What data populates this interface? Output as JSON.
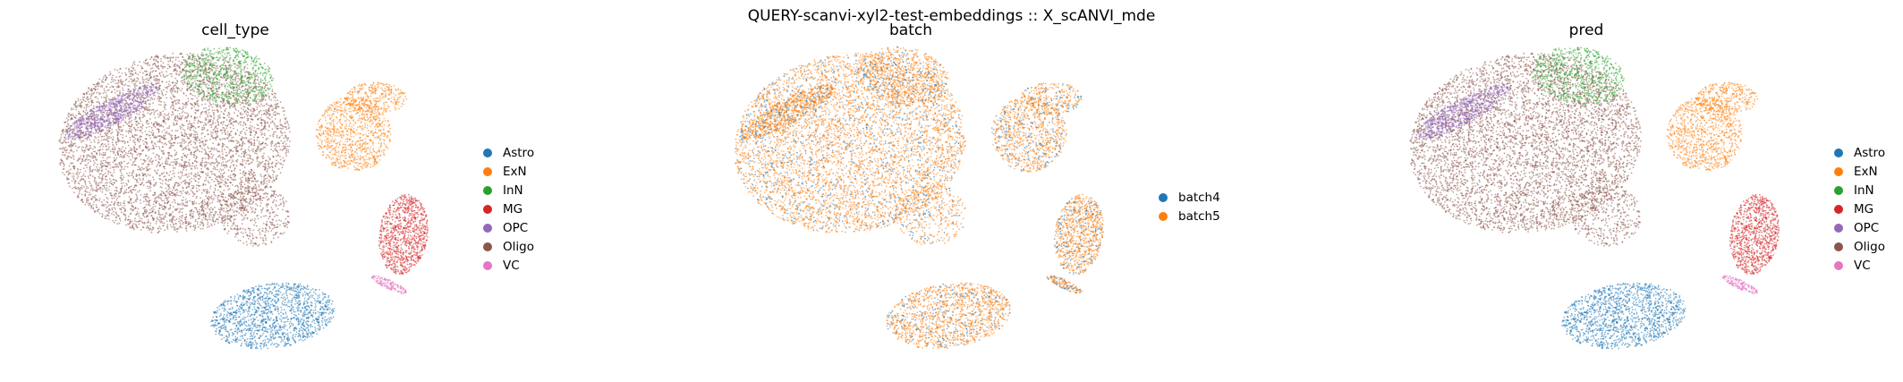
{
  "suptitle": "QUERY-scanvi-xyl2-test-embeddings :: X_scANVI_mde",
  "chart_data": [
    {
      "type": "scatter",
      "title": "cell_type",
      "legend": "right",
      "grid": false,
      "categories": [
        {
          "name": "Astro",
          "color": "#1f77b4"
        },
        {
          "name": "ExN",
          "color": "#ff7f0e"
        },
        {
          "name": "InN",
          "color": "#2ca02c"
        },
        {
          "name": "MG",
          "color": "#d62728"
        },
        {
          "name": "OPC",
          "color": "#9467bd"
        },
        {
          "name": "Oligo",
          "color": "#8c564b"
        },
        {
          "name": "VC",
          "color": "#e377c2"
        }
      ]
    },
    {
      "type": "scatter",
      "title": "batch",
      "legend": "right",
      "grid": false,
      "categories": [
        {
          "name": "batch4",
          "color": "#1f77b4"
        },
        {
          "name": "batch5",
          "color": "#ff7f0e"
        }
      ]
    },
    {
      "type": "scatter",
      "title": "pred",
      "legend": "right",
      "grid": false,
      "categories": [
        {
          "name": "Astro",
          "color": "#1f77b4"
        },
        {
          "name": "ExN",
          "color": "#ff7f0e"
        },
        {
          "name": "InN",
          "color": "#2ca02c"
        },
        {
          "name": "MG",
          "color": "#d62728"
        },
        {
          "name": "OPC",
          "color": "#9467bd"
        },
        {
          "name": "Oligo",
          "color": "#8c564b"
        },
        {
          "name": "VC",
          "color": "#e377c2"
        }
      ]
    }
  ]
}
